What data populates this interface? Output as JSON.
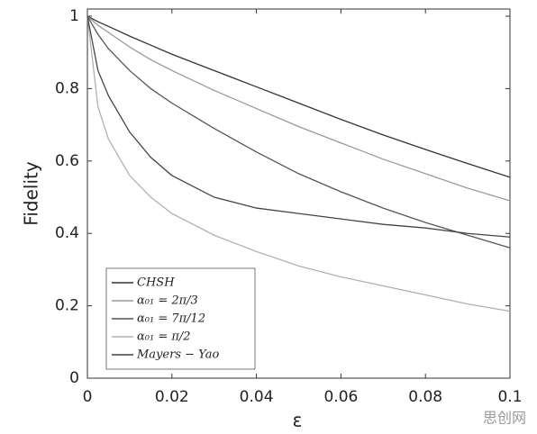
{
  "chart_data": {
    "type": "line",
    "xlabel": "ε",
    "ylabel": "Fidelity",
    "x": [
      0,
      0.0025,
      0.005,
      0.01,
      0.015,
      0.02,
      0.03,
      0.04,
      0.05,
      0.06,
      0.07,
      0.08,
      0.09,
      0.1
    ],
    "series": [
      {
        "name": "CHSH",
        "color": "#333333",
        "values": [
          1,
          0.985,
          0.972,
          0.945,
          0.92,
          0.895,
          0.85,
          0.805,
          0.76,
          0.715,
          0.672,
          0.632,
          0.593,
          0.555
        ]
      },
      {
        "name": "α₀₁ = 2π/3",
        "color": "#9a9a9a",
        "values": [
          1,
          0.975,
          0.955,
          0.915,
          0.88,
          0.85,
          0.795,
          0.745,
          0.695,
          0.65,
          0.605,
          0.565,
          0.525,
          0.49
        ]
      },
      {
        "name": "α₀₁ = 7π/12",
        "color": "#555555",
        "values": [
          1,
          0.95,
          0.91,
          0.85,
          0.8,
          0.76,
          0.69,
          0.625,
          0.565,
          0.515,
          0.47,
          0.43,
          0.395,
          0.36
        ]
      },
      {
        "name": "α₀₁ = π/2",
        "color": "#b0b0b0",
        "values": [
          1,
          0.75,
          0.66,
          0.56,
          0.5,
          0.455,
          0.395,
          0.35,
          0.31,
          0.28,
          0.255,
          0.23,
          0.205,
          0.185
        ]
      },
      {
        "name": "Mayers − Yao",
        "color": "#444444",
        "values": [
          1,
          0.85,
          0.78,
          0.68,
          0.61,
          0.56,
          0.5,
          0.47,
          0.455,
          0.44,
          0.425,
          0.415,
          0.4,
          0.39
        ]
      }
    ],
    "xlim": [
      0,
      0.1
    ],
    "xticks": [
      0,
      0.02,
      0.04,
      0.06,
      0.08,
      0.1
    ],
    "ylim": [
      0,
      1.02
    ],
    "yticks": [
      0,
      0.2,
      0.4,
      0.6,
      0.8,
      1
    ],
    "grid": false,
    "legend": "lower-left"
  },
  "watermark": "思创网"
}
